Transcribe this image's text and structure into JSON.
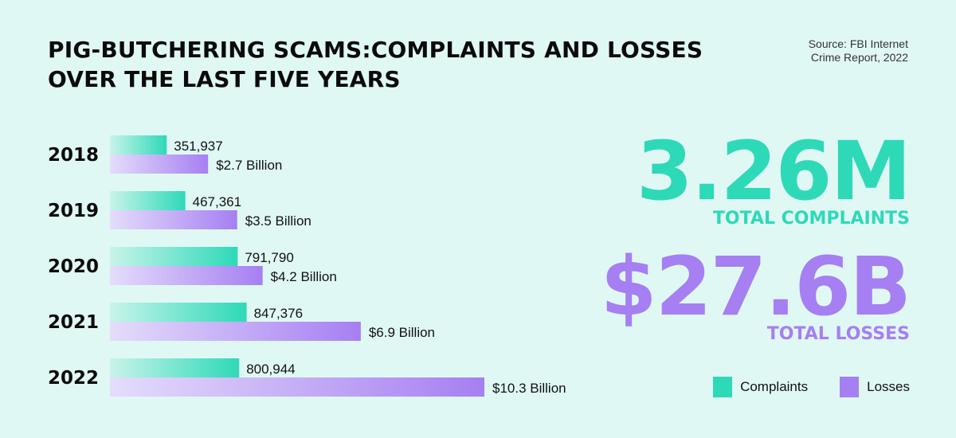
{
  "header": {
    "title_line1": "PIG-BUTCHERING SCAMS:COMPLAINTS AND LOSSES",
    "title_line2": "OVER THE LAST FIVE YEARS",
    "source_line1": "Source: FBI Internet",
    "source_line2": "Crime Report, 2022"
  },
  "stats": {
    "complaints_value": "3.26M",
    "complaints_label": "TOTAL COMPLAINTS",
    "losses_value": "$27.6B",
    "losses_label": "TOTAL LOSSES"
  },
  "legend": {
    "complaints": "Complaints",
    "losses": "Losses"
  },
  "colors": {
    "complaints": "#2ed9b8",
    "complaints_light": "#c8f4ea",
    "losses": "#a67ff2",
    "losses_light": "#e4ddfa",
    "background": "#e0f8f4"
  },
  "chart_data": {
    "type": "bar",
    "orientation": "horizontal",
    "categories": [
      "2018",
      "2019",
      "2020",
      "2021",
      "2022"
    ],
    "series": [
      {
        "name": "Complaints",
        "values": [
          351937,
          467361,
          791790,
          847376,
          800944
        ],
        "labels": [
          "351,937",
          "467,361",
          "791,790",
          "847,376",
          "800,944"
        ]
      },
      {
        "name": "Losses",
        "values": [
          2.7,
          3.5,
          4.2,
          6.9,
          10.3
        ],
        "labels": [
          "$2.7 Billion",
          "$3.5 Billion",
          "$4.2 Billion",
          "$6.9 Billion",
          "$10.3 Billion"
        ]
      }
    ],
    "grid": false,
    "legend_position": "bottom-right"
  }
}
